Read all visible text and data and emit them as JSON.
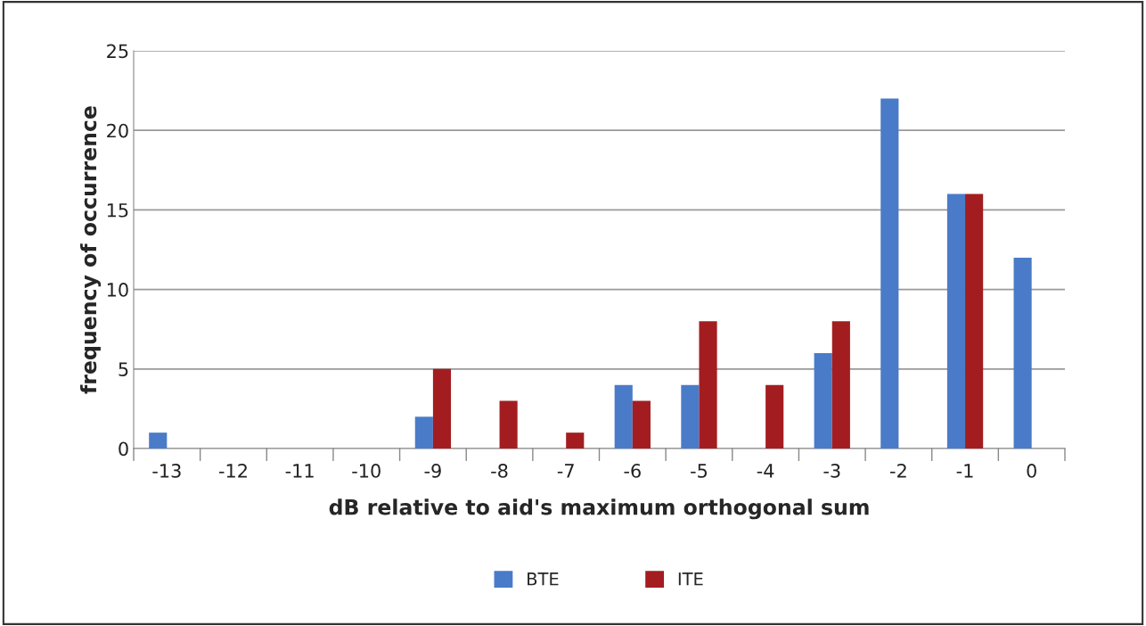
{
  "chart_data": {
    "type": "bar",
    "xlabel": "dB relative to aid's maximum orthogonal sum",
    "ylabel": "frequency of occurrence",
    "categories": [
      "-13",
      "-12",
      "-11",
      "-10",
      "-9",
      "-8",
      "-7",
      "-6",
      "-5",
      "-4",
      "-3",
      "-2",
      "-1",
      "0"
    ],
    "series": [
      {
        "name": "BTE",
        "color": "#4a7bc8",
        "values": [
          1,
          0,
          0,
          0,
          2,
          0,
          0,
          4,
          4,
          0,
          6,
          22,
          16,
          12
        ]
      },
      {
        "name": "ITE",
        "color": "#a31d20",
        "values": [
          0,
          0,
          0,
          0,
          5,
          3,
          1,
          3,
          8,
          4,
          8,
          0,
          16,
          0
        ]
      }
    ],
    "ylim": [
      0,
      25
    ],
    "yticks": [
      0,
      5,
      10,
      15,
      20,
      25
    ],
    "grid": "y",
    "legend": "bottom"
  }
}
